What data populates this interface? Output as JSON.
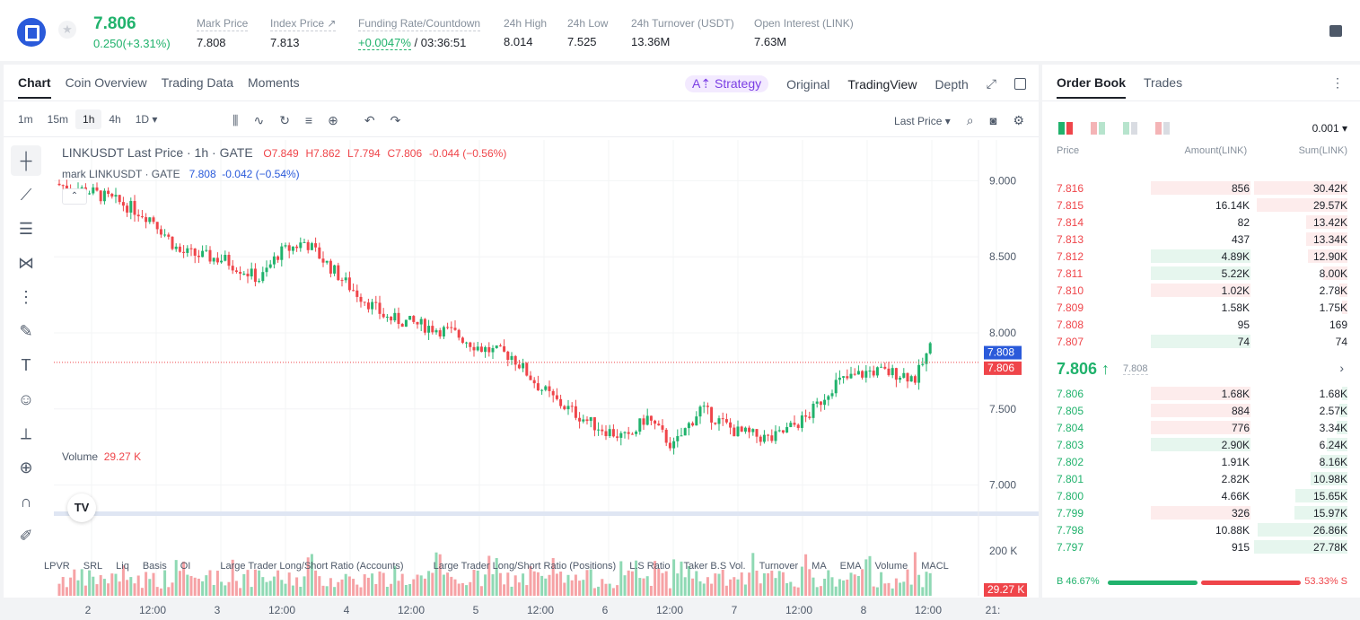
{
  "header": {
    "last_price": "7.806",
    "change": "0.250(+3.31%)",
    "stats": [
      {
        "label": "Mark Price",
        "value": "7.808"
      },
      {
        "label": "Index Price ↗",
        "value": "7.813"
      },
      {
        "label": "Funding Rate/Countdown",
        "value": "+0.0047%",
        "value2": " / 03:36:51"
      },
      {
        "label": "24h High",
        "value": "8.014"
      },
      {
        "label": "24h Low",
        "value": "7.525"
      },
      {
        "label": "24h Turnover (USDT)",
        "value": "13.36M"
      },
      {
        "label": "Open Interest (LINK)",
        "value": "7.63M"
      }
    ]
  },
  "chart_tabs": [
    "Chart",
    "Coin Overview",
    "Trading Data",
    "Moments"
  ],
  "chart_right_tabs": {
    "strategy": "A⇡ Strategy",
    "original": "Original",
    "tradingview": "TradingView",
    "depth": "Depth"
  },
  "timeframes": [
    "1m",
    "15m",
    "1h",
    "4h",
    "1D ▾"
  ],
  "price_type": "Last Price ▾",
  "legend": {
    "main": "LINKUSDT Last Price · 1h · GATE",
    "o": "O7.849",
    "h": "H7.862",
    "l": "L7.794",
    "c": "C7.806",
    "chg": "-0.044 (−0.56%)",
    "mark": "mark LINKUSDT · GATE",
    "mark_val": "7.808",
    "mark_chg": "-0.042 (−0.54%)"
  },
  "volume_legend": {
    "label": "Volume",
    "value": "29.27 K"
  },
  "indicators": [
    "LPVR",
    "SRL",
    "Liq",
    "Basis",
    "OI",
    "Large Trader Long/Short Ratio (Accounts)",
    "Large Trader Long/Short Ratio (Positions)",
    "L.S Ratio",
    "Taker B.S Vol.",
    "Turnover",
    "MA",
    "EMA",
    "Volume",
    "MACL"
  ],
  "chart_data": {
    "type": "candlestick",
    "y_ticks": [
      "9.000",
      "8.500",
      "8.000",
      "7.500",
      "7.000"
    ],
    "ylim": [
      6.85,
      9.15
    ],
    "x_ticks": [
      "2",
      "12:00",
      "3",
      "12:00",
      "4",
      "12:00",
      "5",
      "12:00",
      "6",
      "12:00",
      "7",
      "12:00",
      "8",
      "12:00",
      "21:"
    ],
    "price_markers": {
      "mark": "7.808",
      "last": "7.806"
    },
    "volume_tick": "200 K",
    "volume_marker": "29.27 K"
  },
  "orderbook": {
    "tabs": [
      "Order Book",
      "Trades"
    ],
    "precision": "0.001 ▾",
    "cols": [
      "Price",
      "Amount(LINK)",
      "Sum(LINK)"
    ],
    "asks": [
      {
        "p": "7.816",
        "a": "856",
        "s": "30.42K",
        "ab": 0.79,
        "sb": 1.0
      },
      {
        "p": "7.815",
        "a": "16.14K",
        "s": "29.57K",
        "ab": 0.0,
        "sb": 0.97
      },
      {
        "p": "7.814",
        "a": "82",
        "s": "13.42K",
        "ab": 0.0,
        "sb": 0.44
      },
      {
        "p": "7.813",
        "a": "437",
        "s": "13.34K",
        "ab": 0.0,
        "sb": 0.44
      },
      {
        "p": "7.812",
        "a": "4.89K",
        "s": "12.90K",
        "ab": 0.79,
        "sb": 0.42
      },
      {
        "p": "7.811",
        "a": "5.22K",
        "s": "8.00K",
        "ab": 0.79,
        "sb": 0.26
      },
      {
        "p": "7.810",
        "a": "1.02K",
        "s": "2.78K",
        "ab": 0.79,
        "sb": 0.09
      },
      {
        "p": "7.809",
        "a": "1.58K",
        "s": "1.75K",
        "ab": 0.0,
        "sb": 0.06
      },
      {
        "p": "7.808",
        "a": "95",
        "s": "169",
        "ab": 0.0,
        "sb": 0.0
      },
      {
        "p": "7.807",
        "a": "74",
        "s": "74",
        "ab": 0.79,
        "sb": 0.0
      }
    ],
    "mid_price": "7.806 ↑",
    "mid_mark": "7.808",
    "bids": [
      {
        "p": "7.806",
        "a": "1.68K",
        "s": "1.68K",
        "ab": 0.79,
        "sb": 0.06
      },
      {
        "p": "7.805",
        "a": "884",
        "s": "2.57K",
        "ab": 0.79,
        "sb": 0.09
      },
      {
        "p": "7.804",
        "a": "776",
        "s": "3.34K",
        "ab": 0.79,
        "sb": 0.12
      },
      {
        "p": "7.803",
        "a": "2.90K",
        "s": "6.24K",
        "ab": 0.79,
        "sb": 0.22
      },
      {
        "p": "7.802",
        "a": "1.91K",
        "s": "8.16K",
        "ab": 0.0,
        "sb": 0.29
      },
      {
        "p": "7.801",
        "a": "2.82K",
        "s": "10.98K",
        "ab": 0.0,
        "sb": 0.39
      },
      {
        "p": "7.800",
        "a": "4.66K",
        "s": "15.65K",
        "ab": 0.0,
        "sb": 0.56
      },
      {
        "p": "7.799",
        "a": "326",
        "s": "15.97K",
        "ab": 0.79,
        "sb": 0.57
      },
      {
        "p": "7.798",
        "a": "10.88K",
        "s": "26.86K",
        "ab": 0.0,
        "sb": 0.96
      },
      {
        "p": "7.797",
        "a": "915",
        "s": "27.78K",
        "ab": 0.0,
        "sb": 1.0
      }
    ],
    "buy_pct": "B 46.67%",
    "sell_pct": "53.33% S"
  }
}
